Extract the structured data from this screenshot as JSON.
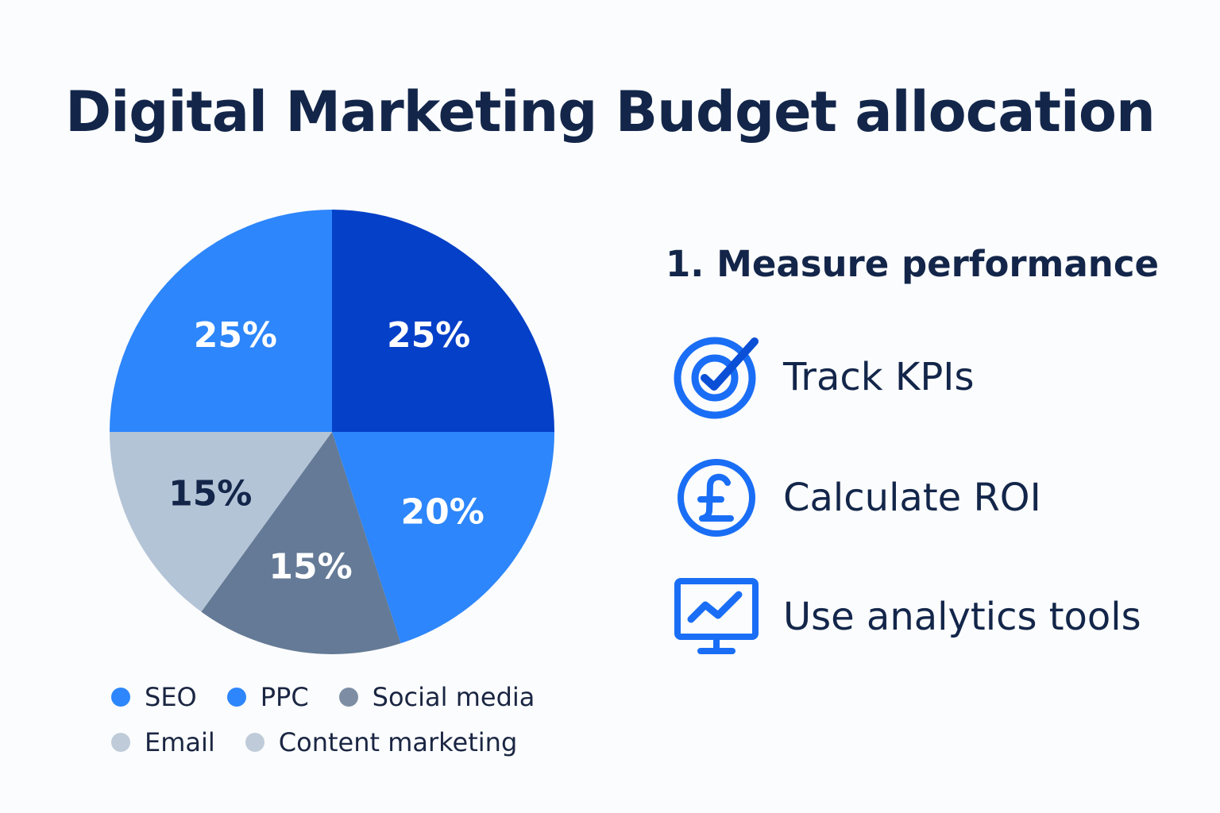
{
  "title": "Digital Marketing Budget allocation",
  "chart_data": {
    "type": "pie",
    "slices": [
      {
        "name": "PPC",
        "value": 25,
        "label": "25%",
        "color": "#0540c8",
        "label_color": "#ffffff"
      },
      {
        "name": "SEO",
        "value": 20,
        "label": "20%",
        "color": "#2d86fb",
        "label_color": "#ffffff"
      },
      {
        "name": "Social media",
        "value": 15,
        "label": "15%",
        "color": "#647a96",
        "label_color": "#ffffff"
      },
      {
        "name": "Email",
        "value": 15,
        "label": "15%",
        "color": "#b4c4d7",
        "label_color": "#13264a"
      },
      {
        "name": "Content marketing",
        "value": 25,
        "label": "25%",
        "color": "#2d86fb",
        "label_color": "#ffffff"
      }
    ],
    "legend": [
      {
        "name": "SEO",
        "color": "#2d86fb"
      },
      {
        "name": "PPC",
        "color": "#2d86fb"
      },
      {
        "name": "Social media",
        "color": "#7d8ea4"
      },
      {
        "name": "Email",
        "color": "#bfcbd9"
      },
      {
        "name": "Content marketing",
        "color": "#bfcbd9"
      }
    ]
  },
  "section": {
    "heading": "1. Measure performance",
    "items": [
      {
        "icon": "target-check-icon",
        "label": "Track KPIs"
      },
      {
        "icon": "pound-coin-icon",
        "label": "Calculate ROI"
      },
      {
        "icon": "analytics-monitor-icon",
        "label": "Use analytics tools"
      }
    ]
  },
  "colors": {
    "title": "#13264a",
    "icon": "#1a6ef5",
    "icon_dark": "#0b4fd6"
  }
}
